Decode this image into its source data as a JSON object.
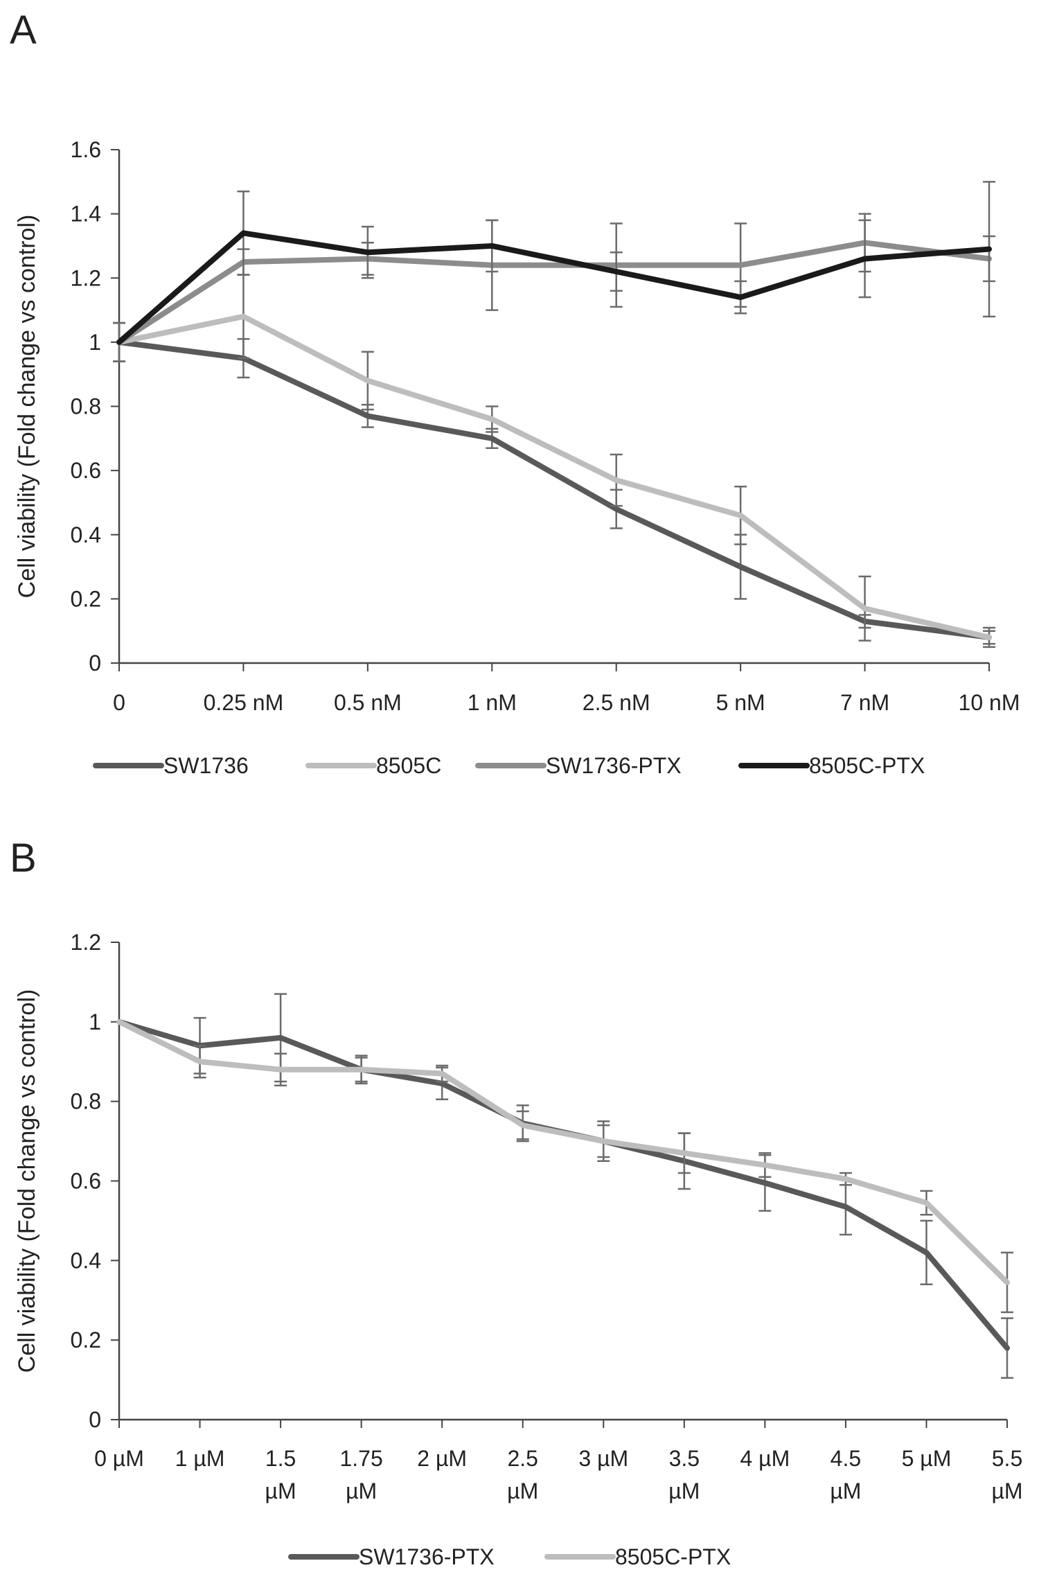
{
  "panels": [
    {
      "letter": "A"
    },
    {
      "letter": "B"
    }
  ],
  "chart_data": [
    {
      "type": "line",
      "title": "",
      "xlabel": "",
      "ylabel": "Cell viability (Fold change vs control)",
      "ylim": [
        0,
        1.6
      ],
      "yticks": [
        "0",
        "0.2",
        "0.4",
        "0.6",
        "0.8",
        "1",
        "1.2",
        "1.4",
        "1.6"
      ],
      "categories": [
        "0",
        "0.25 nM",
        "0.5 nM",
        "1 nM",
        "2.5 nM",
        "5 nM",
        "7 nM",
        "10 nM"
      ],
      "grid": false,
      "legend_position": "bottom",
      "series": [
        {
          "name": "SW1736",
          "color": "#595959",
          "values": [
            1.0,
            0.95,
            0.77,
            0.7,
            0.48,
            0.3,
            0.13,
            0.08
          ],
          "errors": [
            0.06,
            0.06,
            0.035,
            0.03,
            0.06,
            0.1,
            0.02,
            0.02
          ]
        },
        {
          "name": "8505C",
          "color": "#bdbdbd",
          "values": [
            1.0,
            1.08,
            0.88,
            0.76,
            0.57,
            0.46,
            0.17,
            0.08
          ],
          "errors": [
            0.06,
            0.13,
            0.09,
            0.04,
            0.08,
            0.09,
            0.1,
            0.03
          ]
        },
        {
          "name": "SW1736-PTX",
          "color": "#8c8c8c",
          "values": [
            1.0,
            1.25,
            1.26,
            1.24,
            1.24,
            1.24,
            1.31,
            1.26
          ],
          "errors": [
            0.06,
            0.04,
            0.05,
            0.14,
            0.13,
            0.13,
            0.09,
            0.07
          ]
        },
        {
          "name": "8505C-PTX",
          "color": "#1a1a1a",
          "values": [
            1.0,
            1.34,
            1.28,
            1.3,
            1.22,
            1.14,
            1.26,
            1.29
          ],
          "errors": [
            0.06,
            0.13,
            0.08,
            0.08,
            0.06,
            0.05,
            0.12,
            0.21
          ]
        }
      ]
    },
    {
      "type": "line",
      "title": "",
      "xlabel": "",
      "ylabel": "Cell viability (Fold change vs control)",
      "ylim": [
        0,
        1.2
      ],
      "yticks": [
        "0",
        "0.2",
        "0.4",
        "0.6",
        "0.8",
        "1",
        "1.2"
      ],
      "categories": [
        [
          "0 µM"
        ],
        [
          "1 µM"
        ],
        [
          "1.5",
          "µM"
        ],
        [
          "1.75",
          "µM"
        ],
        [
          "2 µM"
        ],
        [
          "2.5",
          "µM"
        ],
        [
          "3 µM"
        ],
        [
          "3.5",
          "µM"
        ],
        [
          "4 µM"
        ],
        [
          "4.5",
          "µM"
        ],
        [
          "5 µM"
        ],
        [
          "5.5",
          "µM"
        ]
      ],
      "grid": false,
      "legend_position": "bottom",
      "series": [
        {
          "name": "SW1736-PTX",
          "color": "#595959",
          "values": [
            1.0,
            0.94,
            0.96,
            0.88,
            0.845,
            0.745,
            0.7,
            0.65,
            0.595,
            0.535,
            0.42,
            0.18
          ],
          "errors": [
            0.0,
            0.07,
            0.11,
            0.03,
            0.04,
            0.045,
            0.05,
            0.07,
            0.07,
            0.07,
            0.08,
            0.075
          ]
        },
        {
          "name": "8505C-PTX",
          "color": "#bdbdbd",
          "values": [
            1.0,
            0.9,
            0.88,
            0.88,
            0.87,
            0.74,
            0.7,
            0.67,
            0.64,
            0.605,
            0.545,
            0.345
          ],
          "errors": [
            0.0,
            0.04,
            0.04,
            0.035,
            0.02,
            0.035,
            0.04,
            0.05,
            0.03,
            0.015,
            0.03,
            0.075
          ]
        }
      ]
    }
  ]
}
